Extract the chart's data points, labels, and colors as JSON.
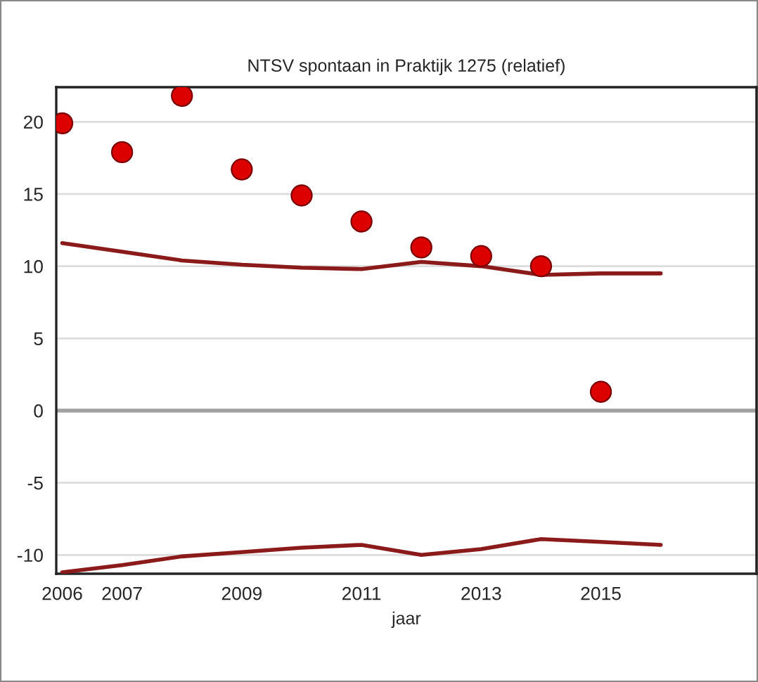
{
  "chart_data": {
    "type": "scatter",
    "title": "NTSV spontaan in Praktijk 1275 (relatief)",
    "xlabel": "jaar",
    "xlim": [
      2005.9,
      2017.6
    ],
    "xticks": [
      2006,
      2007,
      2009,
      2011,
      2013,
      2015
    ],
    "ylim": [
      -11.3,
      22.4
    ],
    "yticks": [
      -10,
      -5,
      0,
      5,
      10,
      15,
      20
    ],
    "grid": "y",
    "legend": false,
    "ref_lines": [
      {
        "axis": "y",
        "value": 0,
        "color": "#a0a0a0"
      }
    ],
    "series": [
      {
        "marker": "circle",
        "color": "#dd0000",
        "x": [
          2006,
          2007,
          2008,
          2009,
          2010,
          2011,
          2012,
          2013,
          2014,
          2015
        ],
        "values": [
          19.9,
          17.9,
          21.8,
          16.7,
          14.9,
          13.1,
          11.3,
          10.7,
          10.0,
          1.3
        ]
      },
      {
        "type": "line",
        "line_style": "solid",
        "color": "#8b1a1a",
        "x": [
          2006,
          2007,
          2008,
          2009,
          2010,
          2011,
          2012,
          2013,
          2014,
          2015,
          2016
        ],
        "values": [
          11.6,
          11.0,
          10.4,
          10.1,
          9.9,
          9.8,
          10.3,
          10.0,
          9.4,
          9.5,
          9.5
        ]
      },
      {
        "type": "line",
        "line_style": "solid",
        "color": "#8b1a1a",
        "x": [
          2006,
          2007,
          2008,
          2009,
          2010,
          2011,
          2012,
          2013,
          2014,
          2015,
          2016
        ],
        "values": [
          -11.2,
          -10.7,
          -10.1,
          -9.8,
          -9.5,
          -9.3,
          -10.0,
          -9.6,
          -8.9,
          -9.1,
          -9.3
        ]
      }
    ]
  }
}
